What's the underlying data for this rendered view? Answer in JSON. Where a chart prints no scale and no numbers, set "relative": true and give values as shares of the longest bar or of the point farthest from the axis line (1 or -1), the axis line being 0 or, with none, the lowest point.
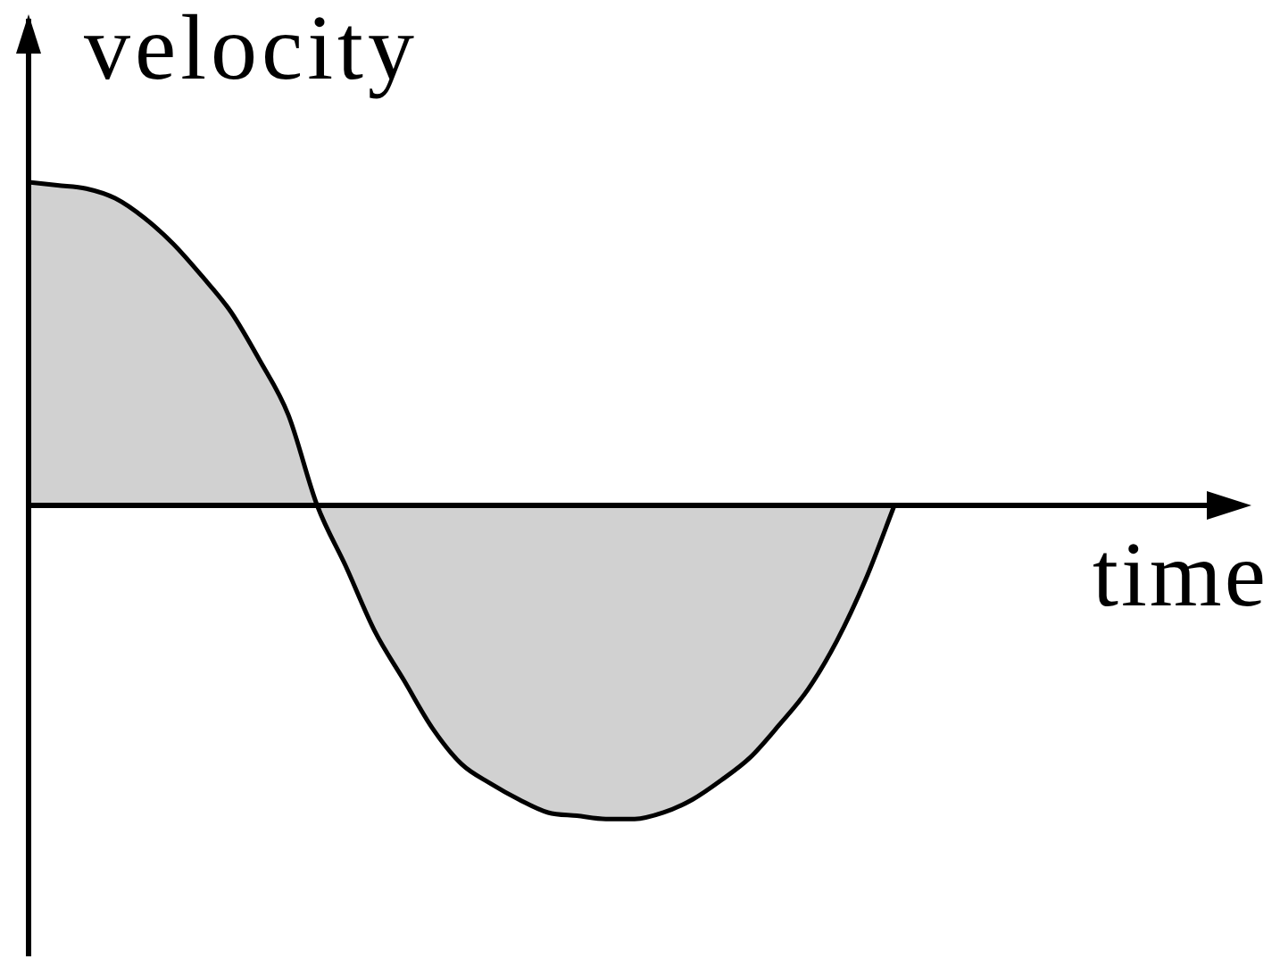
{
  "chart_data": {
    "type": "area",
    "xlabel": "time",
    "ylabel": "velocity",
    "relative": true,
    "color": "#000000",
    "categories": [
      null,
      null,
      null,
      null,
      null,
      null,
      null,
      null,
      null,
      null,
      null,
      null,
      null,
      null,
      null,
      null,
      null,
      null,
      null,
      null,
      null,
      null,
      null,
      null,
      null,
      null,
      null,
      null,
      null,
      null,
      null,
      null,
      null,
      null,
      null,
      null,
      null,
      null,
      null,
      null,
      null,
      null,
      null
    ],
    "values": [
      1.0,
      0.99,
      0.98,
      0.95,
      0.89,
      0.81,
      0.71,
      0.6,
      0.45,
      0.28,
      0,
      -0.19,
      -0.39,
      -0.54,
      -0.69,
      -0.8,
      -0.86,
      -0.91,
      -0.95,
      -0.96,
      -0.97,
      -0.97,
      -0.95,
      -0.91,
      -0.85,
      -0.78,
      -0.68,
      -0.57,
      -0.42,
      -0.23,
      0,
      null,
      null,
      null,
      null,
      null,
      null,
      null,
      null,
      null,
      null,
      null,
      null
    ]
  }
}
